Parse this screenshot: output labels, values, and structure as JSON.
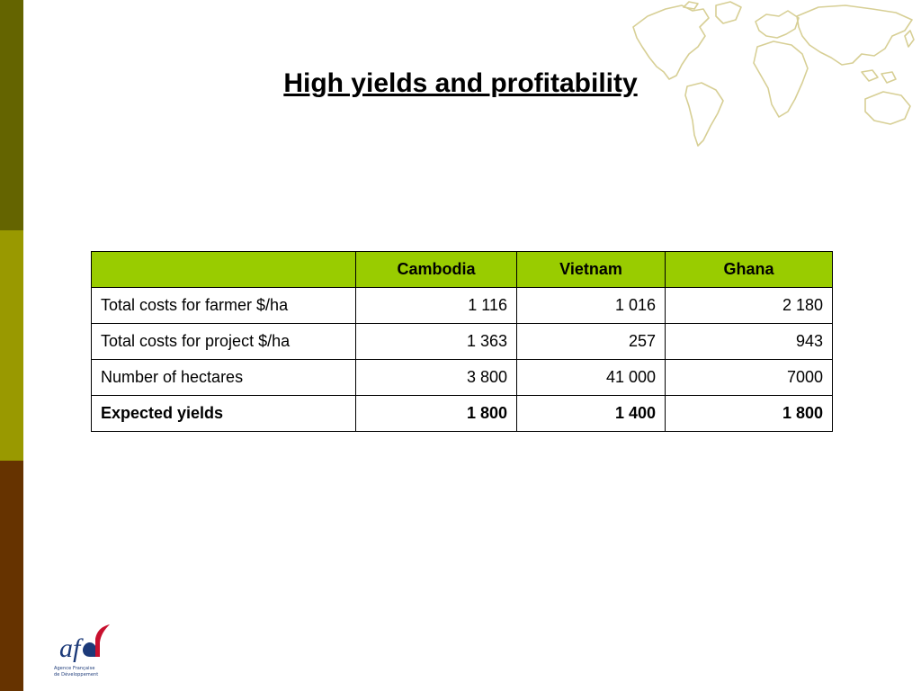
{
  "title": "High yields and profitability",
  "colors": {
    "band_top": "#646400",
    "band_mid": "#999900",
    "band_bottom": "#663300",
    "table_header_bg": "#99cc00",
    "map_color": "#d7cf95",
    "logo_blue": "#1c3a79",
    "logo_red": "#c8102e"
  },
  "table": {
    "headers": [
      "",
      "Cambodia",
      "Vietnam",
      "Ghana"
    ],
    "rows": [
      {
        "label": "Total costs for farmer $/ha",
        "values": [
          "1 116",
          "1 016",
          "2 180"
        ]
      },
      {
        "label": "Total costs for project $/ha",
        "values": [
          "1 363",
          "257",
          "943"
        ]
      },
      {
        "label": "Number of hectares",
        "values": [
          "3 800",
          "41 000",
          "7000"
        ]
      },
      {
        "label": "Expected yields",
        "values": [
          "1 800",
          "1 400",
          "1 800"
        ]
      }
    ]
  },
  "logo": {
    "mark": "afd",
    "line1": "Agence Française",
    "line2": "de Développement"
  },
  "icons": {
    "decoration": "world-map-icon"
  }
}
